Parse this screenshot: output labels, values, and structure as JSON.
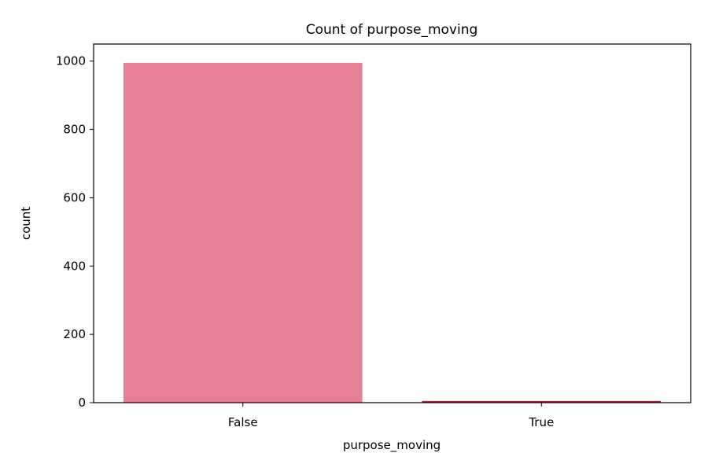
{
  "chart_data": {
    "type": "bar",
    "title": "Count of purpose_moving",
    "xlabel": "purpose_moving",
    "ylabel": "count",
    "categories": [
      "False",
      "True"
    ],
    "values": [
      995,
      5
    ],
    "ylim": [
      0,
      1050
    ],
    "yticks": [
      0,
      200,
      400,
      600,
      800,
      1000
    ],
    "colors": [
      "#e78094",
      "#9b2a3f"
    ],
    "grid": false,
    "legend": "none"
  }
}
